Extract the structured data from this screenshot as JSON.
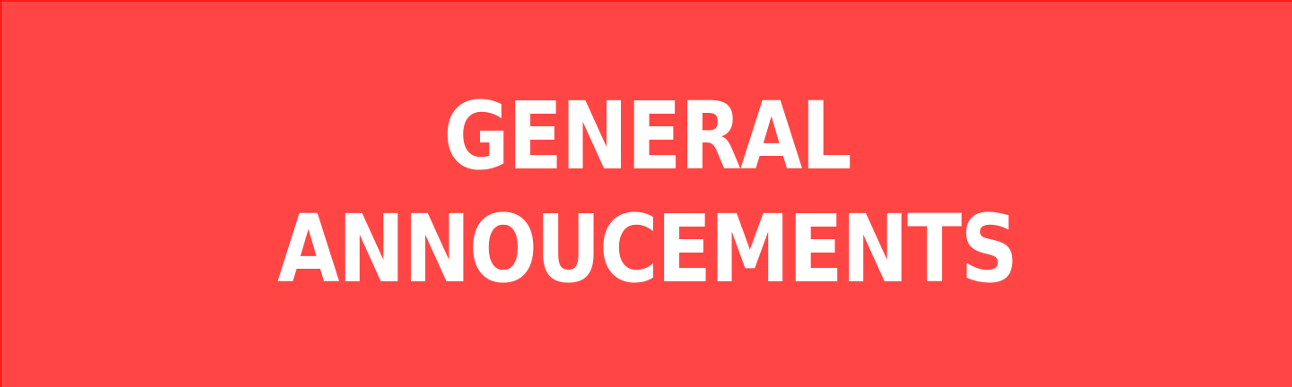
{
  "banner": {
    "background_color": "#ff4644",
    "text_color": "#ffffff",
    "title_line_1": "GENERAL",
    "title_line_2": "ANNOUCEMENTS"
  }
}
